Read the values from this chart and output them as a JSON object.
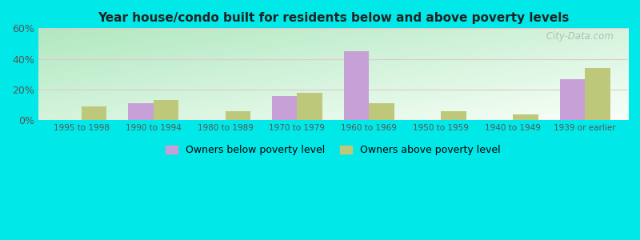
{
  "title": "Year house/condo built for residents below and above poverty levels",
  "categories": [
    "1995 to 1998",
    "1990 to 1994",
    "1980 to 1989",
    "1970 to 1979",
    "1960 to 1969",
    "1950 to 1959",
    "1940 to 1949",
    "1939 or earlier"
  ],
  "below_poverty": [
    0,
    11,
    0,
    16,
    45,
    0,
    0,
    27
  ],
  "above_poverty": [
    9,
    13,
    6,
    18,
    11,
    6,
    4,
    34
  ],
  "below_color": "#c8a0d8",
  "above_color": "#bec87a",
  "ylim": [
    0,
    60
  ],
  "yticks": [
    0,
    20,
    40,
    60
  ],
  "ytick_labels": [
    "0%",
    "20%",
    "40%",
    "60%"
  ],
  "legend_below": "Owners below poverty level",
  "legend_above": "Owners above poverty level",
  "grad_color_tl": "#b0e8c0",
  "grad_color_br": "#f8fff8",
  "outer_bg": "#00e8e8",
  "watermark": " City-Data.com",
  "grid_color": "#e0c8d0",
  "title_color": "#222222",
  "tick_color": "#555555"
}
